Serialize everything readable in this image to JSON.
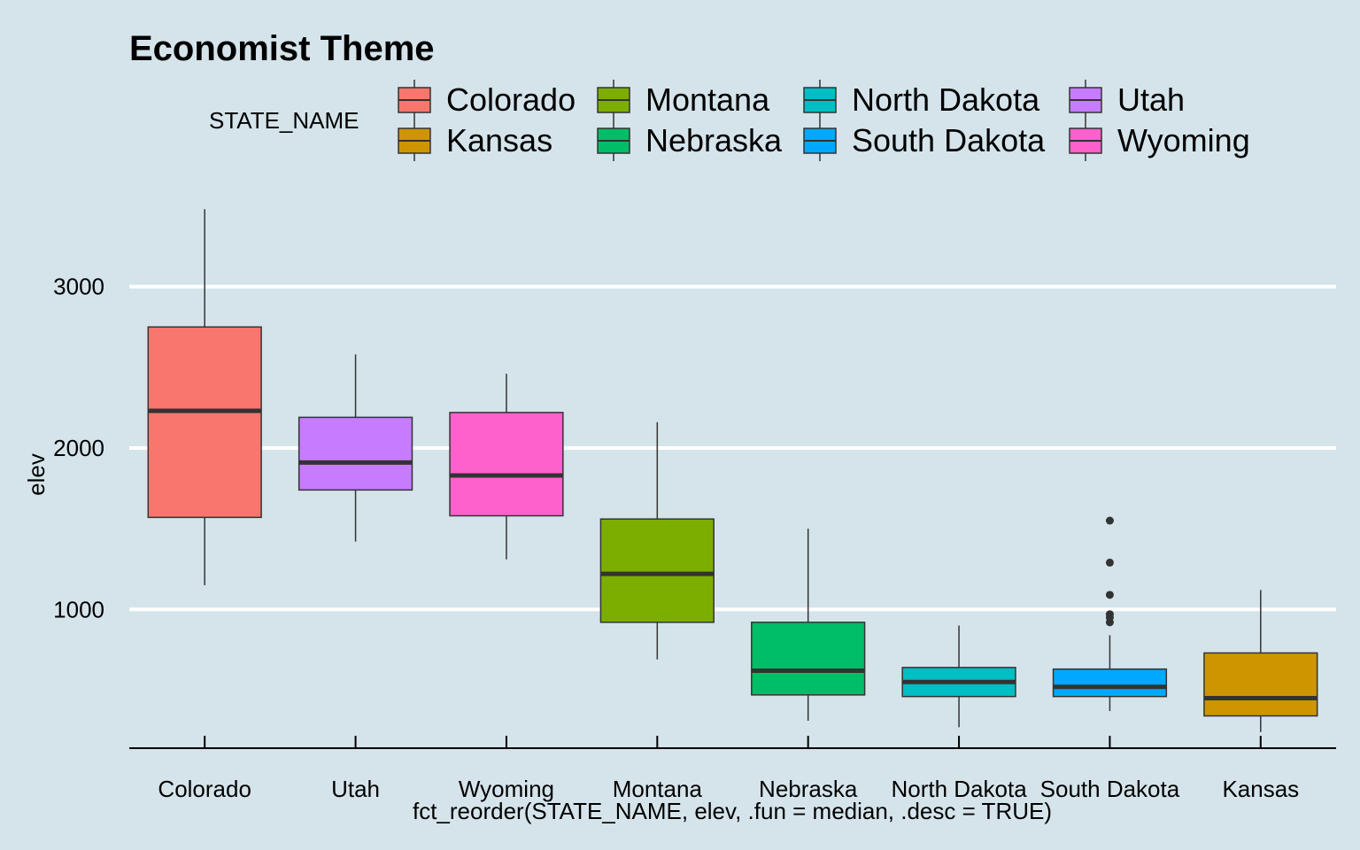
{
  "chart_data": {
    "type": "boxplot",
    "title": "Economist Theme",
    "xlabel": "fct_reorder(STATE_NAME, elev, .fun = median, .desc = TRUE)",
    "ylabel": "elev",
    "ylim": [
      140,
      3580
    ],
    "yticks": [
      1000,
      2000,
      3000
    ],
    "grid": "horizontal major",
    "legend": {
      "title": "STATE_NAME",
      "placement": "top",
      "columns": [
        [
          "Colorado",
          "Kansas"
        ],
        [
          "Montana",
          "Nebraska"
        ],
        [
          "North Dakota",
          "South Dakota"
        ],
        [
          "Utah",
          "Wyoming"
        ]
      ]
    },
    "colors": {
      "Colorado": "#f8766d",
      "Kansas": "#cd9600",
      "Montana": "#7cae00",
      "Nebraska": "#00be67",
      "North Dakota": "#00bfc4",
      "South Dakota": "#00a9ff",
      "Utah": "#c77cff",
      "Wyoming": "#ff61cc"
    },
    "categories": [
      "Colorado",
      "Utah",
      "Wyoming",
      "Montana",
      "Nebraska",
      "North Dakota",
      "South Dakota",
      "Kansas"
    ],
    "series": [
      {
        "category": "Colorado",
        "min": 1150,
        "q1": 1570,
        "median": 2230,
        "q3": 2750,
        "max": 3480,
        "outliers": []
      },
      {
        "category": "Utah",
        "min": 1420,
        "q1": 1740,
        "median": 1910,
        "q3": 2190,
        "max": 2580,
        "outliers": []
      },
      {
        "category": "Wyoming",
        "min": 1310,
        "q1": 1580,
        "median": 1830,
        "q3": 2220,
        "max": 2460,
        "outliers": []
      },
      {
        "category": "Montana",
        "min": 690,
        "q1": 920,
        "median": 1220,
        "q3": 1560,
        "max": 2160,
        "outliers": []
      },
      {
        "category": "Nebraska",
        "min": 310,
        "q1": 470,
        "median": 620,
        "q3": 920,
        "max": 1500,
        "outliers": []
      },
      {
        "category": "North Dakota",
        "min": 270,
        "q1": 460,
        "median": 550,
        "q3": 640,
        "max": 900,
        "outliers": []
      },
      {
        "category": "South Dakota",
        "min": 370,
        "q1": 460,
        "median": 520,
        "q3": 630,
        "max": 840,
        "outliers": [
          920,
          950,
          970,
          1090,
          1290,
          1550
        ]
      },
      {
        "category": "Kansas",
        "min": 240,
        "q1": 340,
        "median": 450,
        "q3": 730,
        "max": 1120,
        "outliers": []
      }
    ]
  }
}
